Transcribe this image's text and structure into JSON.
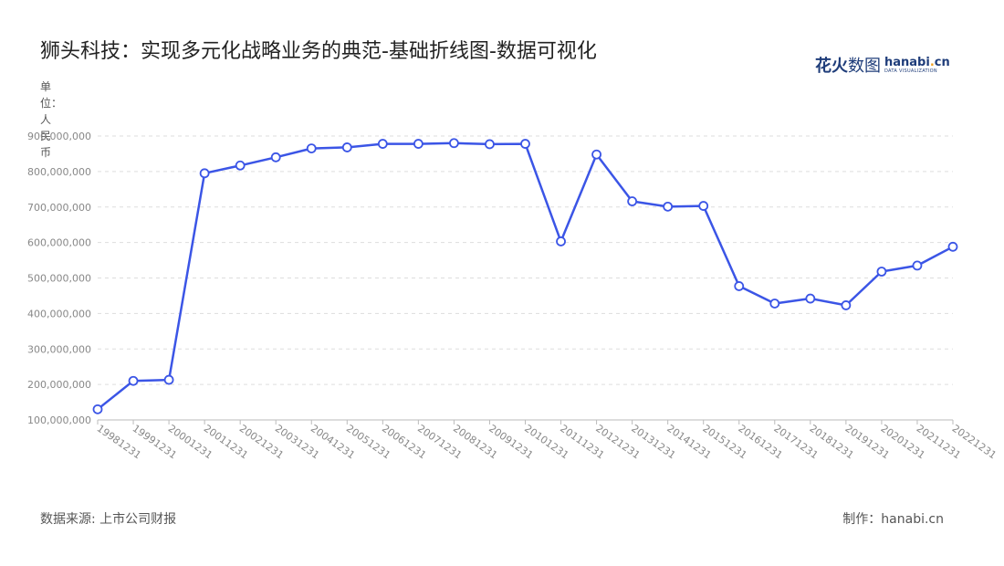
{
  "title": "狮头科技：实现多元化战略业务的典范-基础折线图-数据可视化",
  "logo": {
    "cn_main": "花火",
    "cn_accent": "数图",
    "en_main_a": "hanabi",
    "en_dot": ".",
    "en_main_b": "cn",
    "en_sub": "DATA VISUALIZATION"
  },
  "unit_label": "单位：人民币",
  "footer": {
    "source": "数据来源: 上市公司财报",
    "maker": "制作：hanabi.cn"
  },
  "colors": {
    "line": "#3b55e6",
    "point_fill": "#ffffff",
    "grid": "#dddddd",
    "axis_text": "#888888"
  },
  "chart_data": {
    "type": "line",
    "title": "狮头科技：实现多元化战略业务的典范-基础折线图-数据可视化",
    "ylabel": "单位：人民币",
    "xlabel": "",
    "ylim": [
      100000000,
      900000000
    ],
    "yticks": [
      100000000,
      200000000,
      300000000,
      400000000,
      500000000,
      600000000,
      700000000,
      800000000,
      900000000
    ],
    "ytick_labels": [
      "100,000,000",
      "200,000,000",
      "300,000,000",
      "400,000,000",
      "500,000,000",
      "600,000,000",
      "700,000,000",
      "800,000,000",
      "900,000,000"
    ],
    "grid": true,
    "categories": [
      "19981231",
      "19991231",
      "20001231",
      "20011231",
      "20021231",
      "20031231",
      "20041231",
      "20051231",
      "20061231",
      "20071231",
      "20081231",
      "20091231",
      "20101231",
      "20111231",
      "20121231",
      "20131231",
      "20141231",
      "20151231",
      "20161231",
      "20171231",
      "20181231",
      "20191231",
      "20201231",
      "20211231",
      "20221231"
    ],
    "series": [
      {
        "values": [
          130000000,
          210000000,
          213000000,
          795000000,
          817000000,
          840000000,
          865000000,
          868000000,
          878000000,
          878000000,
          880000000,
          877000000,
          878000000,
          603000000,
          848000000,
          716000000,
          701000000,
          703000000,
          477000000,
          428000000,
          442000000,
          423000000,
          518000000,
          535000000,
          588000000
        ]
      }
    ]
  }
}
